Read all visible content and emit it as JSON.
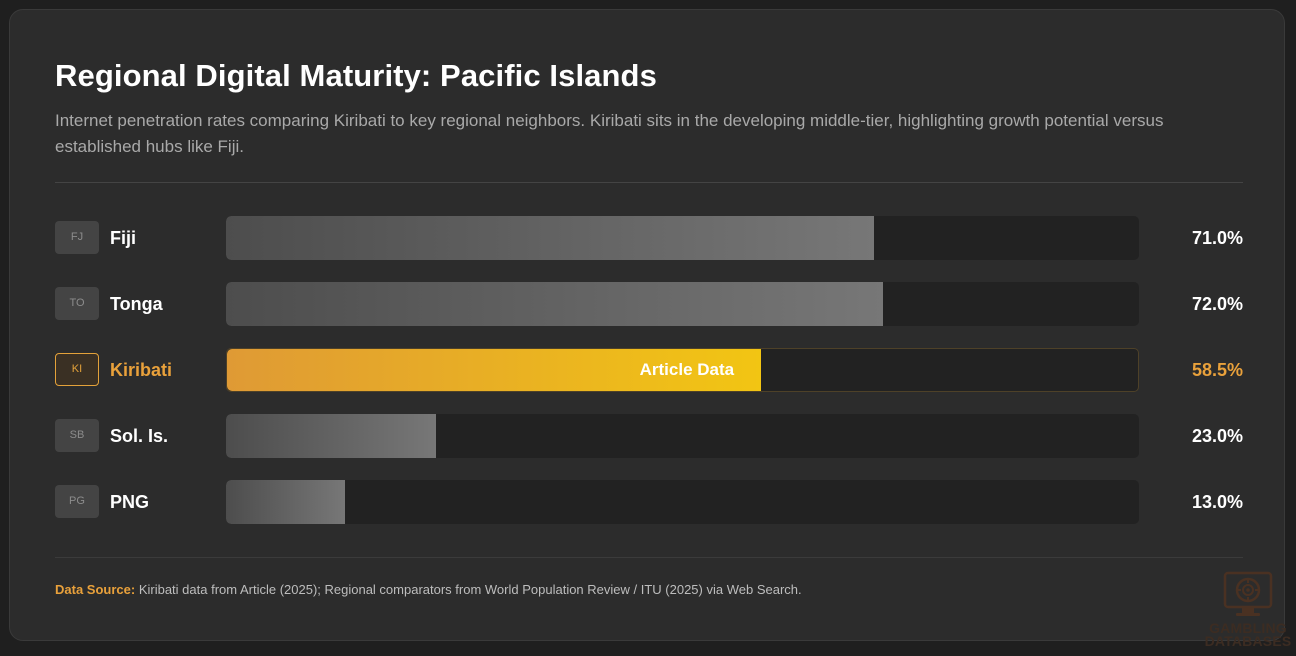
{
  "header": {
    "title": "Regional Digital Maturity: Pacific Islands",
    "subtitle": "Internet penetration rates comparing Kiribati to key regional neighbors. Kiribati sits in the developing middle-tier, highlighting growth potential versus established hubs like Fiji."
  },
  "chart_data": {
    "type": "bar",
    "orientation": "horizontal",
    "xlim": [
      0,
      100
    ],
    "highlight_color": "#e9a13b",
    "bar_color": "#6a6a6a",
    "rows": [
      {
        "code": "FJ",
        "name": "Fiji",
        "value": 71.0,
        "value_label": "71.0%",
        "highlight": false,
        "bar_label": ""
      },
      {
        "code": "TO",
        "name": "Tonga",
        "value": 72.0,
        "value_label": "72.0%",
        "highlight": false,
        "bar_label": ""
      },
      {
        "code": "KI",
        "name": "Kiribati",
        "value": 58.5,
        "value_label": "58.5%",
        "highlight": true,
        "bar_label": "Article Data"
      },
      {
        "code": "SB",
        "name": "Sol. Is.",
        "value": 23.0,
        "value_label": "23.0%",
        "highlight": false,
        "bar_label": ""
      },
      {
        "code": "PG",
        "name": "PNG",
        "value": 13.0,
        "value_label": "13.0%",
        "highlight": false,
        "bar_label": ""
      }
    ]
  },
  "footer": {
    "source_label": "Data Source:",
    "source_text": " Kiribati data from Article (2025); Regional comparators from World Population Review / ITU (2025) via Web Search."
  },
  "watermark": {
    "line1": "GAMBLING",
    "line2": "DATABASES",
    "icon": "roulette-monitor-icon"
  }
}
